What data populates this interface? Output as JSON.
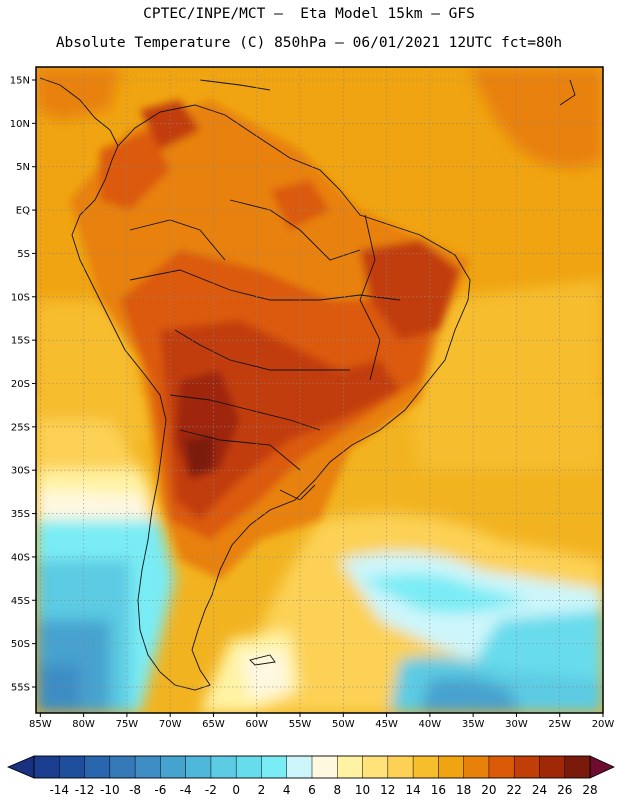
{
  "title": {
    "line1": "CPTEC/INPE/MCT –  Eta Model 15km – GFS",
    "line2": "Absolute Temperature (C) 850hPa – 06/01/2021 12UTC fct=80h"
  },
  "map": {
    "lat_labels": [
      "15N",
      "10N",
      "5N",
      "EQ",
      "5S",
      "10S",
      "15S",
      "20S",
      "25S",
      "30S",
      "35S",
      "40S",
      "45S",
      "50S",
      "55S"
    ],
    "lat_values": [
      15,
      10,
      5,
      0,
      -5,
      -10,
      -15,
      -20,
      -25,
      -30,
      -35,
      -40,
      -45,
      -50,
      -55
    ],
    "lon_labels": [
      "85W",
      "80W",
      "75W",
      "70W",
      "65W",
      "60W",
      "55W",
      "50W",
      "45W",
      "40W",
      "35W",
      "30W",
      "25W",
      "20W"
    ],
    "lon_values": [
      -85,
      -80,
      -75,
      -70,
      -65,
      -60,
      -55,
      -50,
      -45,
      -40,
      -35,
      -30,
      -25,
      -20
    ],
    "lon_range": [
      -85.5,
      -20
    ],
    "lat_range": [
      -58,
      16.5
    ]
  },
  "colorbar": {
    "labels": [
      "-14",
      "-12",
      "-10",
      "-8",
      "-6",
      "-4",
      "-2",
      "0",
      "2",
      "4",
      "6",
      "8",
      "10",
      "12",
      "14",
      "16",
      "18",
      "20",
      "22",
      "24",
      "26",
      "28"
    ],
    "colors": [
      "#1a3d8f",
      "#1f4e9c",
      "#2a66ad",
      "#3579b8",
      "#3e8dc4",
      "#46a2cf",
      "#4fb7d9",
      "#5ccbe3",
      "#67dcec",
      "#79ecf5",
      "#cdf6fb",
      "#fff8e0",
      "#fff3a3",
      "#ffe27a",
      "#fcd155",
      "#f6bd2d",
      "#f0a411",
      "#e8810a",
      "#db5a08",
      "#c23e08",
      "#9f2808",
      "#7a1a0a"
    ],
    "end_low": "#1a3080",
    "end_high": "#6e0c30"
  }
}
